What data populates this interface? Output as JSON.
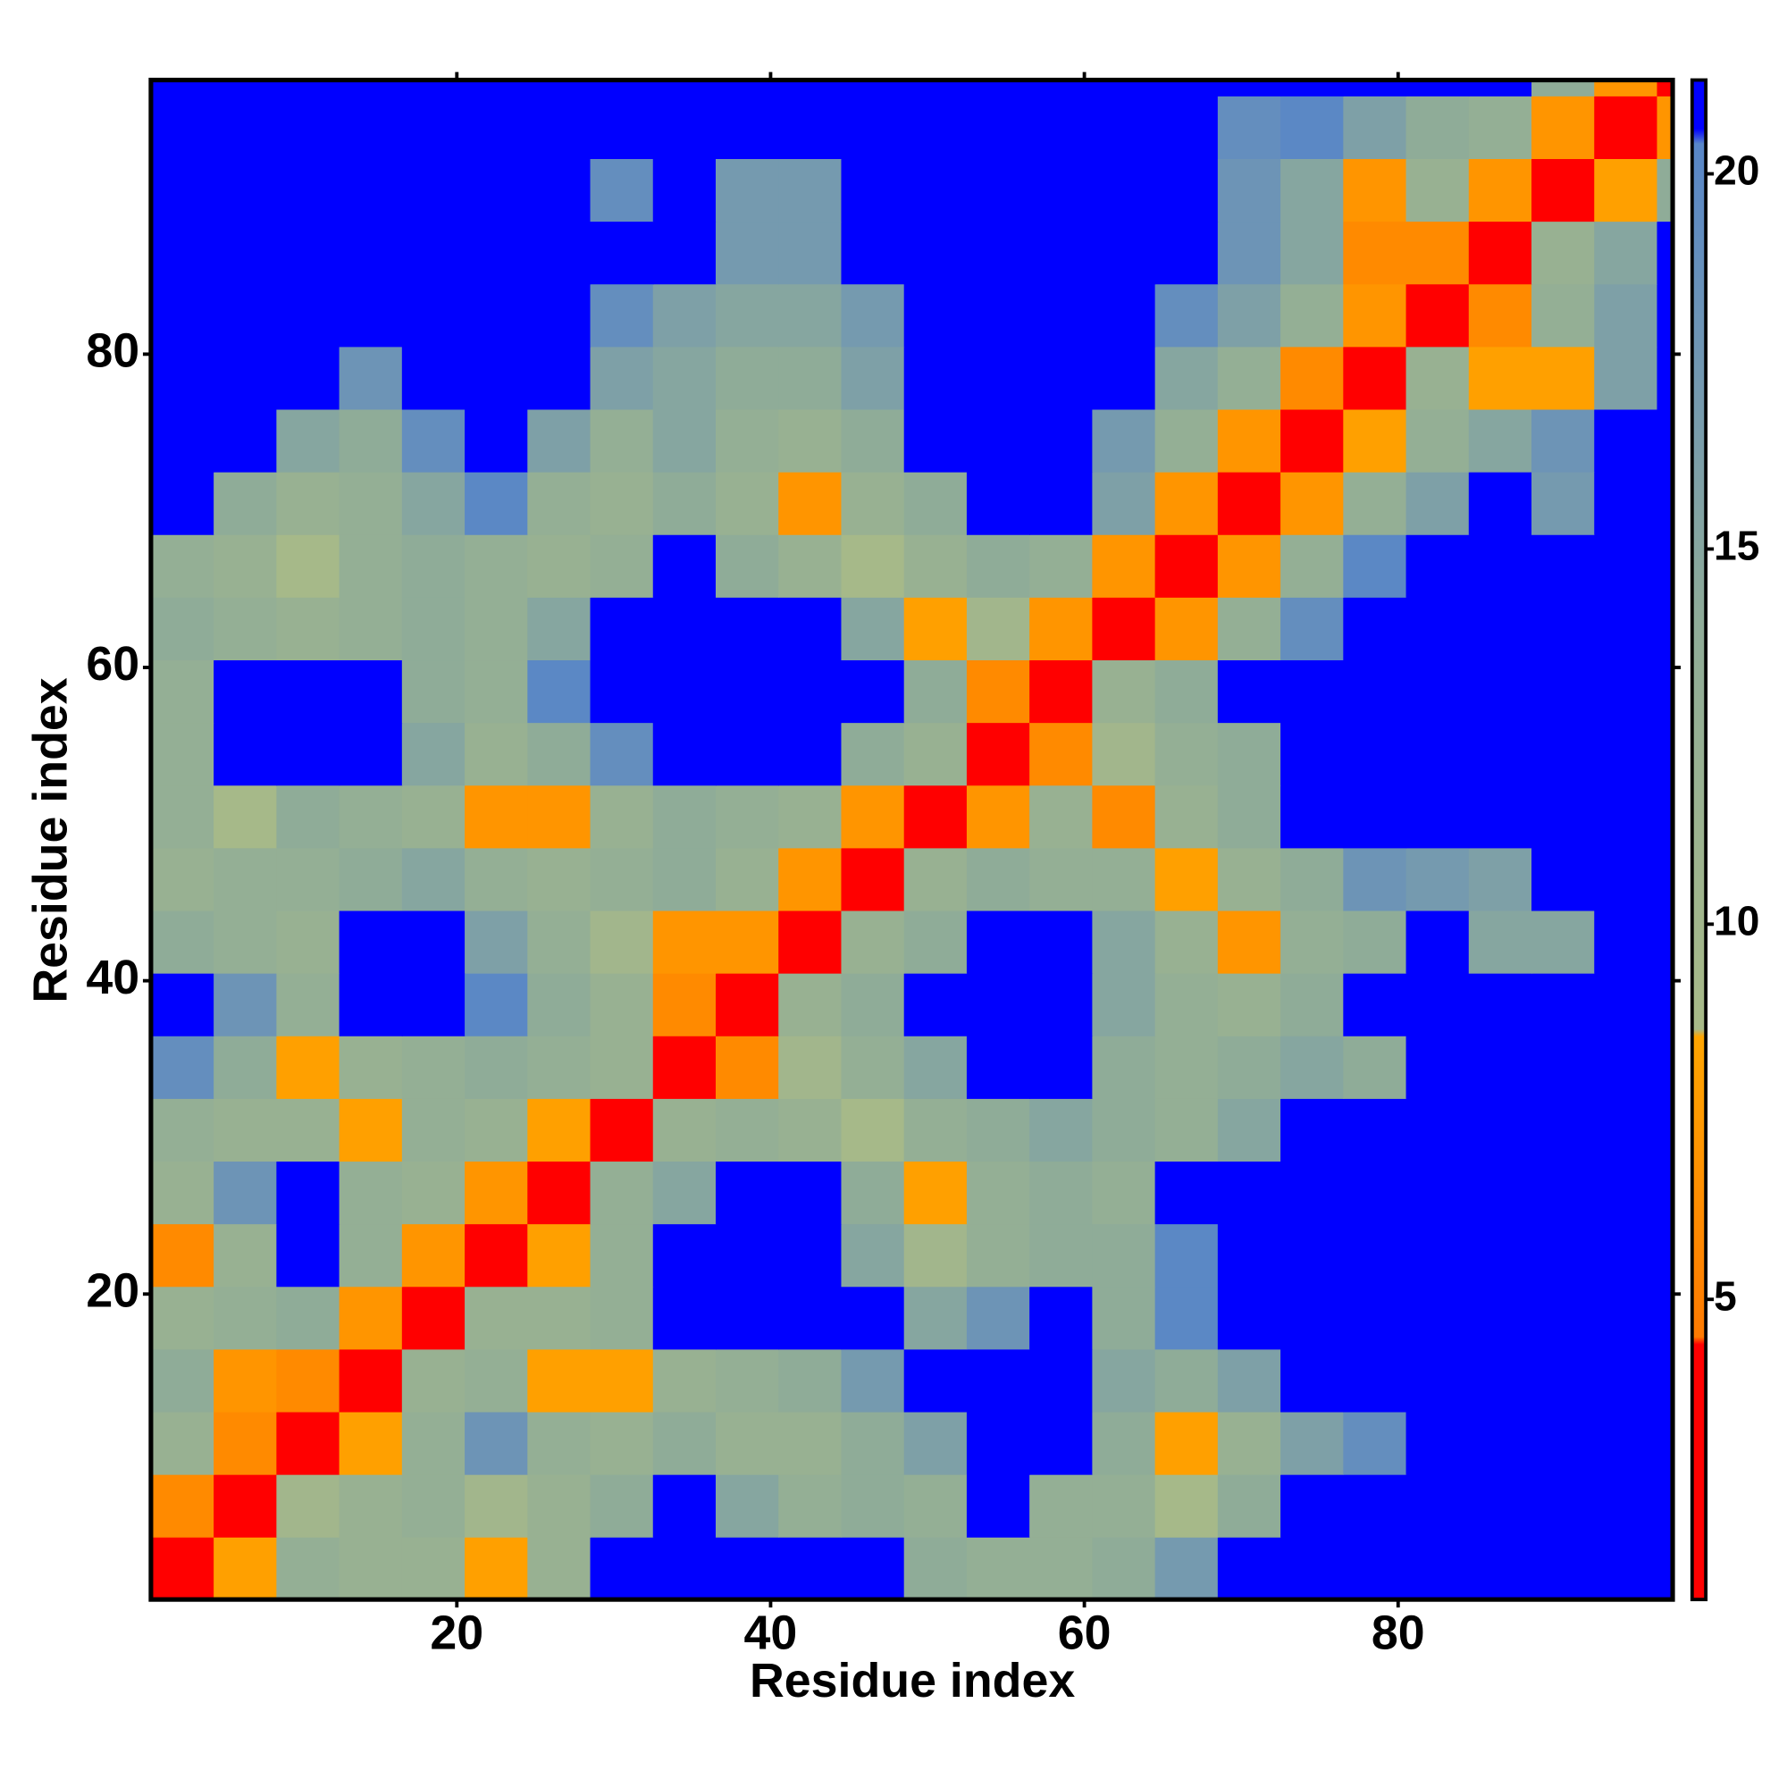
{
  "chart_data": {
    "type": "heatmap",
    "xlabel": "Residue index",
    "ylabel": "Residue index",
    "xbins": [
      0.5,
      4.5,
      8.5,
      12.5,
      16.5,
      20.5,
      24.5,
      28.5,
      32.5,
      36.5,
      40.5,
      44.5,
      48.5,
      52.5,
      56.5,
      60.5,
      64.5,
      68.5,
      72.5,
      76.5,
      80.5,
      84.5,
      88.5,
      92.5,
      96.5,
      97.5
    ],
    "ybins": [
      0.5,
      4.5,
      8.5,
      12.5,
      16.5,
      20.5,
      24.5,
      28.5,
      32.5,
      36.5,
      40.5,
      44.5,
      48.5,
      52.5,
      56.5,
      60.5,
      64.5,
      68.5,
      72.5,
      76.5,
      80.5,
      84.5,
      88.5,
      92.5,
      96.5,
      97.5
    ],
    "xlim": [
      0.5,
      97.5
    ],
    "ylim": [
      0.5,
      97.5
    ],
    "xticks": [
      20,
      40,
      60,
      80
    ],
    "yticks": [
      20,
      40,
      60,
      80
    ],
    "zlim": [
      1,
      21.25
    ],
    "zticks": [
      5,
      10,
      15,
      20
    ],
    "colorscale": [
      [
        1,
        "#ff0000"
      ],
      [
        4.4,
        "#ff0000"
      ],
      [
        4.5,
        "#ff7a00"
      ],
      [
        8.5,
        "#ffa500"
      ],
      [
        8.6,
        "#a8ba88"
      ],
      [
        14,
        "#8fac98"
      ],
      [
        20.4,
        "#5886c8"
      ],
      [
        20.6,
        "#0000ff"
      ],
      [
        21.25,
        "#0000ff"
      ]
    ],
    "z": [
      [
        3.8,
        8,
        13,
        12,
        12,
        8,
        12,
        21,
        21,
        21,
        21,
        21,
        14,
        13,
        13,
        14,
        17,
        21,
        21,
        21,
        21,
        21,
        21,
        21,
        21
      ],
      [
        6,
        3.8,
        10,
        12,
        13,
        10,
        12,
        14,
        21,
        15,
        13,
        14,
        13,
        21,
        13,
        13,
        9,
        14,
        21,
        21,
        21,
        21,
        21,
        21,
        21
      ],
      [
        12,
        6,
        3.8,
        8,
        13,
        18,
        13,
        12,
        14,
        12,
        12,
        14,
        16,
        21,
        21,
        14,
        8,
        12,
        16,
        19,
        21,
        21,
        21,
        21,
        21
      ],
      [
        14,
        7,
        6,
        3.8,
        12,
        13,
        8,
        8,
        12,
        13,
        14,
        17,
        21,
        21,
        21,
        15,
        14,
        16,
        21,
        21,
        21,
        21,
        21,
        21,
        21
      ],
      [
        12,
        13,
        14,
        7,
        3.8,
        12,
        12,
        13,
        21,
        21,
        21,
        21,
        15,
        18,
        21,
        14,
        20,
        21,
        21,
        21,
        21,
        21,
        21,
        21,
        21
      ],
      [
        6,
        12,
        21,
        13,
        7,
        3.8,
        8,
        13,
        21,
        21,
        21,
        15,
        10,
        13,
        14,
        14,
        20,
        21,
        21,
        21,
        21,
        21,
        21,
        21,
        21
      ],
      [
        12,
        18,
        21,
        13,
        12,
        7,
        3.8,
        13,
        15,
        21,
        21,
        14,
        8,
        13,
        14,
        13,
        21,
        21,
        21,
        21,
        21,
        21,
        21,
        21,
        21
      ],
      [
        13,
        12,
        12,
        8,
        13,
        12,
        8,
        3.8,
        12,
        13,
        12,
        9,
        13,
        14,
        15,
        14,
        13,
        15,
        21,
        21,
        21,
        21,
        21,
        21,
        21
      ],
      [
        19,
        14,
        8,
        12,
        13,
        14,
        13,
        12,
        3.8,
        6,
        10,
        13,
        15,
        21,
        21,
        14,
        13,
        14,
        15,
        14,
        21,
        21,
        21,
        21,
        21
      ],
      [
        21,
        18,
        13,
        21,
        21,
        20,
        14,
        12,
        6,
        3.8,
        12,
        14,
        21,
        21,
        21,
        15,
        13,
        12,
        14,
        21,
        21,
        21,
        21,
        21,
        21
      ],
      [
        14,
        13,
        12,
        21,
        21,
        16,
        13,
        10,
        7,
        7,
        3.8,
        12,
        14,
        21,
        21,
        15,
        12,
        7,
        13,
        14,
        21,
        15,
        15,
        21,
        21
      ],
      [
        12,
        13,
        13,
        14,
        15,
        13,
        12,
        13,
        14,
        12,
        7,
        3.8,
        12,
        14,
        13,
        13,
        8,
        12,
        14,
        18,
        17,
        16,
        21,
        21,
        21
      ],
      [
        13,
        9,
        14,
        13,
        12,
        7,
        7,
        12,
        14,
        13,
        12,
        7,
        3.8,
        7,
        12,
        6,
        12,
        14,
        21,
        21,
        21,
        21,
        21,
        21,
        21
      ],
      [
        13,
        21,
        21,
        21,
        15,
        12,
        14,
        19,
        21,
        21,
        21,
        14,
        12,
        3.8,
        6,
        10,
        13,
        14,
        21,
        21,
        21,
        21,
        21,
        21,
        21
      ],
      [
        13,
        21,
        21,
        21,
        14,
        13,
        20,
        21,
        21,
        21,
        21,
        21,
        14,
        6,
        3.8,
        12,
        14,
        21,
        21,
        21,
        21,
        21,
        21,
        21,
        21
      ],
      [
        14,
        13,
        12,
        13,
        14,
        13,
        15,
        21,
        21,
        21,
        21,
        15,
        8,
        10,
        7,
        3.8,
        7,
        13,
        19,
        21,
        21,
        21,
        21,
        21,
        21
      ],
      [
        13,
        12,
        9,
        13,
        14,
        13,
        12,
        13,
        21,
        14,
        12,
        9,
        12,
        14,
        13,
        7,
        3.8,
        7,
        13,
        20,
        21,
        21,
        21,
        21,
        21
      ],
      [
        21,
        14,
        12,
        13,
        15,
        20,
        13,
        12,
        14,
        12,
        7,
        12,
        14,
        21,
        21,
        16,
        7,
        3.8,
        7,
        13,
        16,
        21,
        17,
        21,
        21
      ],
      [
        21,
        21,
        15,
        14,
        19,
        21,
        16,
        13,
        15,
        13,
        12,
        14,
        21,
        21,
        21,
        17,
        13,
        7,
        3.8,
        8,
        13,
        15,
        18,
        21,
        21
      ],
      [
        21,
        21,
        21,
        18,
        21,
        21,
        21,
        16,
        15,
        14,
        14,
        16,
        21,
        21,
        21,
        21,
        15,
        13,
        6,
        3.8,
        12,
        8,
        8,
        16,
        21
      ],
      [
        21,
        21,
        21,
        21,
        21,
        21,
        21,
        19,
        16,
        15,
        15,
        17,
        21,
        21,
        21,
        21,
        19,
        16,
        13,
        7,
        3.8,
        6,
        13,
        16,
        21
      ],
      [
        21,
        21,
        21,
        21,
        21,
        21,
        21,
        21,
        21,
        17,
        17,
        21,
        21,
        21,
        21,
        21,
        21,
        18,
        15,
        6,
        6,
        3.8,
        12,
        15,
        21
      ],
      [
        21,
        21,
        21,
        21,
        21,
        21,
        21,
        19,
        21,
        17,
        17,
        21,
        21,
        21,
        21,
        21,
        21,
        18,
        15,
        7,
        12,
        7,
        3.8,
        8,
        14
      ],
      [
        21,
        21,
        21,
        21,
        21,
        21,
        21,
        21,
        21,
        21,
        21,
        21,
        21,
        21,
        21,
        21,
        21,
        19,
        20,
        16,
        14,
        13,
        7,
        3.8,
        7
      ],
      [
        21,
        21,
        21,
        21,
        21,
        21,
        21,
        21,
        21,
        21,
        21,
        21,
        21,
        21,
        21,
        21,
        21,
        21,
        21,
        21,
        21,
        21,
        14,
        7,
        3.8
      ]
    ]
  }
}
